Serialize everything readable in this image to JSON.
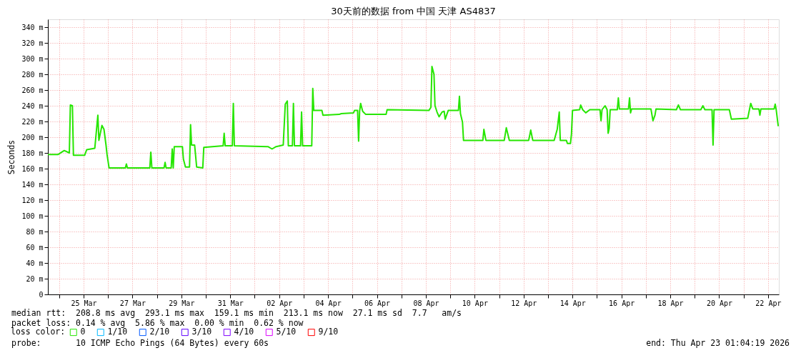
{
  "chart_data": {
    "type": "line",
    "title": "30天前的数据 from 中国 天津 AS4837",
    "ylabel": "Seconds",
    "legend_title": "loss color:",
    "legend": "bottom left",
    "grid": true,
    "xlim": [
      "2026-03-23T12:55",
      "2026-04-22T10:36"
    ],
    "xticks": [
      {
        "value": "2026-03-24",
        "label": null
      },
      {
        "value": "2026-03-25",
        "label": "25 Mar"
      },
      {
        "value": "2026-03-26",
        "label": null
      },
      {
        "value": "2026-03-27",
        "label": "27 Mar"
      },
      {
        "value": "2026-03-28",
        "label": null
      },
      {
        "value": "2026-03-29",
        "label": "29 Mar"
      },
      {
        "value": "2026-03-30",
        "label": null
      },
      {
        "value": "2026-03-31",
        "label": "31 Mar"
      },
      {
        "value": "2026-04-01",
        "label": null
      },
      {
        "value": "2026-04-02",
        "label": "02 Apr"
      },
      {
        "value": "2026-04-03",
        "label": null
      },
      {
        "value": "2026-04-04",
        "label": "04 Apr"
      },
      {
        "value": "2026-04-05",
        "label": null
      },
      {
        "value": "2026-04-06",
        "label": "06 Apr"
      },
      {
        "value": "2026-04-07",
        "label": null
      },
      {
        "value": "2026-04-08",
        "label": "08 Apr"
      },
      {
        "value": "2026-04-09",
        "label": null
      },
      {
        "value": "2026-04-10",
        "label": "10 Apr"
      },
      {
        "value": "2026-04-11",
        "label": null
      },
      {
        "value": "2026-04-12",
        "label": "12 Apr"
      },
      {
        "value": "2026-04-13",
        "label": null
      },
      {
        "value": "2026-04-14",
        "label": "14 Apr"
      },
      {
        "value": "2026-04-15",
        "label": null
      },
      {
        "value": "2026-04-16",
        "label": "16 Apr"
      },
      {
        "value": "2026-04-17",
        "label": null
      },
      {
        "value": "2026-04-18",
        "label": "18 Apr"
      },
      {
        "value": "2026-04-19",
        "label": null
      },
      {
        "value": "2026-04-20",
        "label": "20 Apr"
      },
      {
        "value": "2026-04-21",
        "label": null
      },
      {
        "value": "2026-04-22",
        "label": "22 Apr"
      }
    ],
    "ylim": [
      0,
      350
    ],
    "yticks": [
      0,
      {
        "value": 20,
        "label": "20 m"
      },
      {
        "value": 40,
        "label": "40 m"
      },
      {
        "value": 60,
        "label": "60 m"
      },
      {
        "value": 80,
        "label": "80 m"
      },
      {
        "value": 100,
        "label": "100 m"
      },
      {
        "value": 120,
        "label": "120 m"
      },
      {
        "value": 140,
        "label": "140 m"
      },
      {
        "value": 160,
        "label": "160 m"
      },
      {
        "value": 180,
        "label": "180 m"
      },
      {
        "value": 200,
        "label": "200 m"
      },
      {
        "value": 220,
        "label": "220 m"
      },
      {
        "value": 240,
        "label": "240 m"
      },
      {
        "value": 260,
        "label": "260 m"
      },
      {
        "value": 280,
        "label": "280 m"
      },
      {
        "value": 300,
        "label": "300 m"
      },
      {
        "value": 320,
        "label": "320 m"
      },
      {
        "value": 340,
        "label": "340 m"
      }
    ],
    "x": [
      "2026-03-23T12:55",
      "2026-03-23T23:00",
      "2026-03-24T05:00",
      "2026-03-24T10:00",
      "2026-03-24T11:00",
      "2026-03-24T13:00",
      "2026-03-24T14:00",
      "2026-03-25T01:00",
      "2026-03-25T03:00",
      "2026-03-25T11:00",
      "2026-03-25T14:00",
      "2026-03-25T15:00",
      "2026-03-25T18:00",
      "2026-03-25T20:00",
      "2026-03-25T22:00",
      "2026-03-25T23:00",
      "2026-03-26T01:00",
      "2026-03-26T17:00",
      "2026-03-26T18:00",
      "2026-03-26T19:00",
      "2026-03-27T17:00",
      "2026-03-27T18:00",
      "2026-03-27T19:00",
      "2026-03-28T07:00",
      "2026-03-28T08:00",
      "2026-03-28T09:00",
      "2026-03-28T14:00",
      "2026-03-28T15:00",
      "2026-03-28T16:00",
      "2026-03-28T17:00",
      "2026-03-29T01:00",
      "2026-03-29T02:00",
      "2026-03-29T04:00",
      "2026-03-29T08:00",
      "2026-03-29T09:00",
      "2026-03-29T10:00",
      "2026-03-29T13:00",
      "2026-03-29T15:00",
      "2026-03-29T21:00",
      "2026-03-29T22:00",
      "2026-03-30T17:00",
      "2026-03-30T18:00",
      "2026-03-30T19:00",
      "2026-03-31T02:00",
      "2026-03-31T03:00",
      "2026-03-31T04:00",
      "2026-04-01T13:00",
      "2026-04-01T17:00",
      "2026-04-01T21:00",
      "2026-04-02T04:00",
      "2026-04-02T06:00",
      "2026-04-02T08:00",
      "2026-04-02T09:00",
      "2026-04-02T13:00",
      "2026-04-02T14:00",
      "2026-04-02T15:00",
      "2026-04-02T21:00",
      "2026-04-02T22:00",
      "2026-04-02T23:00",
      "2026-04-03T08:00",
      "2026-04-03T09:00",
      "2026-04-03T10:00",
      "2026-04-03T18:00",
      "2026-04-03T19:00",
      "2026-04-04T11:00",
      "2026-04-04T13:00",
      "2026-04-05T01:00",
      "2026-04-05T02:00",
      "2026-04-05T05:00",
      "2026-04-05T06:00",
      "2026-04-05T07:00",
      "2026-04-05T08:00",
      "2026-04-05T10:00",
      "2026-04-05T13:00",
      "2026-04-06T09:00",
      "2026-04-06T10:00",
      "2026-04-08T03:00",
      "2026-04-08T05:00",
      "2026-04-08T06:00",
      "2026-04-08T08:00",
      "2026-04-08T09:00",
      "2026-04-08T11:00",
      "2026-04-08T13:00",
      "2026-04-08T16:00",
      "2026-04-08T18:00",
      "2026-04-08T19:00",
      "2026-04-08T22:00",
      "2026-04-09T08:00",
      "2026-04-09T09:00",
      "2026-04-09T10:00",
      "2026-04-09T12:00",
      "2026-04-09T13:00",
      "2026-04-10T08:00",
      "2026-04-10T09:00",
      "2026-04-10T11:00",
      "2026-04-11T05:00",
      "2026-04-11T07:00",
      "2026-04-11T10:00",
      "2026-04-12T05:00",
      "2026-04-12T07:00",
      "2026-04-12T09:00",
      "2026-04-13T06:00",
      "2026-04-13T09:00",
      "2026-04-13T11:00",
      "2026-04-13T12:00",
      "2026-04-13T18:00",
      "2026-04-13T19:00",
      "2026-04-13T22:00",
      "2026-04-13T23:00",
      "2026-04-14T00:00",
      "2026-04-14T07:00",
      "2026-04-14T08:00",
      "2026-04-14T10:00",
      "2026-04-14T13:00",
      "2026-04-14T17:00",
      "2026-04-15T03:00",
      "2026-04-15T04:00",
      "2026-04-15T05:00",
      "2026-04-15T08:00",
      "2026-04-15T10:00",
      "2026-04-15T11:00",
      "2026-04-15T12:00",
      "2026-04-15T13:00",
      "2026-04-15T20:00",
      "2026-04-15T21:00",
      "2026-04-15T22:00",
      "2026-04-16T07:00",
      "2026-04-16T08:00",
      "2026-04-16T09:00",
      "2026-04-16T10:00",
      "2026-04-17T05:00",
      "2026-04-17T07:00",
      "2026-04-17T09:00",
      "2026-04-17T10:00",
      "2026-04-18T06:00",
      "2026-04-18T08:00",
      "2026-04-18T10:00",
      "2026-04-19T06:00",
      "2026-04-19T08:00",
      "2026-04-19T10:00",
      "2026-04-19T17:00",
      "2026-04-19T18:00",
      "2026-04-19T19:00",
      "2026-04-20T10:00",
      "2026-04-20T12:00",
      "2026-04-21T04:00",
      "2026-04-21T07:00",
      "2026-04-21T09:00",
      "2026-04-21T15:00",
      "2026-04-21T16:00",
      "2026-04-21T17:00",
      "2026-04-22T06:00",
      "2026-04-22T07:00",
      "2026-04-22T08:00",
      "2026-04-22T10:00"
    ],
    "series": [
      {
        "name": "0",
        "color": "#26e600",
        "values": [
          178,
          178,
          183,
          180,
          241,
          240,
          177,
          177,
          184,
          186,
          228,
          196,
          215,
          210,
          190,
          178,
          161,
          161,
          166,
          161,
          161,
          181,
          161,
          161,
          168,
          161,
          161,
          185,
          161,
          188,
          188,
          172,
          162,
          162,
          216,
          190,
          190,
          162,
          161,
          187,
          189,
          205,
          189,
          189,
          243,
          189,
          188,
          185,
          188,
          190,
          242,
          246,
          189,
          189,
          243,
          189,
          189,
          232,
          189,
          189,
          262,
          234,
          234,
          228,
          229,
          230,
          231,
          234,
          234,
          195,
          233,
          243,
          233,
          229,
          229,
          235,
          234,
          238,
          290,
          280,
          240,
          232,
          226,
          232,
          233,
          223,
          234,
          234,
          252,
          230,
          219,
          196,
          196,
          210,
          196,
          196,
          212,
          196,
          196,
          209,
          196,
          196,
          210,
          232,
          196,
          196,
          192,
          192,
          204,
          234,
          235,
          241,
          235,
          231,
          235,
          235,
          221,
          235,
          240,
          235,
          205,
          211,
          235,
          235,
          250,
          236,
          236,
          250,
          231,
          236,
          236,
          221,
          228,
          236,
          235,
          241,
          235,
          235,
          240,
          235,
          235,
          190,
          235,
          235,
          223,
          224,
          243,
          236,
          236,
          228,
          236,
          236,
          242,
          235,
          214
        ]
      },
      {
        "name": "1/10",
        "color": "#00b8ff",
        "values": [
          null,
          null,
          null,
          null,
          null,
          null,
          null,
          null,
          null,
          null,
          null,
          null,
          null,
          null,
          null,
          null,
          null,
          null,
          null,
          null,
          null,
          null,
          null,
          null,
          null,
          null,
          null,
          null,
          null,
          null,
          null,
          null,
          null,
          null,
          null,
          null,
          null,
          null,
          null,
          null,
          null,
          null,
          null,
          null,
          null,
          null,
          null,
          null,
          null,
          null,
          null,
          null,
          null,
          null,
          null,
          null,
          null,
          null,
          null,
          null,
          null,
          null,
          null,
          null,
          null,
          null,
          null,
          null,
          null,
          null,
          null,
          null,
          null,
          null,
          null,
          null,
          null,
          null,
          null,
          null,
          null,
          null,
          null,
          null,
          null,
          null,
          null,
          null,
          null,
          null,
          null,
          null,
          null,
          null,
          null,
          null,
          null,
          null,
          null,
          null,
          null,
          null,
          null,
          null,
          null,
          null,
          null,
          null,
          null,
          null,
          null,
          null,
          null,
          null,
          null,
          null,
          null,
          null,
          null,
          null,
          null,
          null,
          null,
          null,
          null,
          null,
          null,
          null,
          null,
          null,
          null,
          null,
          null,
          null,
          null,
          null,
          null,
          null,
          null,
          null,
          null,
          null,
          null,
          null,
          null,
          null,
          null,
          null,
          null,
          null,
          null,
          null,
          null,
          null,
          null
        ]
      },
      {
        "name": "2/10",
        "color": "#0059ff",
        "values": [
          null,
          null,
          null,
          null,
          null,
          null,
          null,
          null,
          null,
          null,
          null,
          null,
          null,
          null,
          null,
          null,
          null,
          null,
          null,
          null,
          null,
          null,
          null,
          null,
          null,
          null,
          null,
          null,
          null,
          null,
          null,
          null,
          null,
          null,
          null,
          null,
          null,
          null,
          null,
          null,
          null,
          null,
          null,
          null,
          null,
          null,
          null,
          null,
          null,
          null,
          null,
          null,
          null,
          null,
          null,
          null,
          null,
          null,
          null,
          null,
          null,
          null,
          null,
          null,
          null,
          null,
          null,
          null,
          null,
          null,
          null,
          null,
          null,
          null,
          null,
          null,
          null,
          null,
          null,
          null,
          null,
          null,
          null,
          null,
          null,
          null,
          null,
          null,
          null,
          null,
          null,
          null,
          null,
          null,
          null,
          null,
          null,
          null,
          null,
          null,
          null,
          null,
          null,
          null,
          null,
          null,
          null,
          null,
          null,
          null,
          null,
          null,
          null,
          null,
          null,
          null,
          null,
          null,
          null,
          null,
          null,
          null,
          null,
          null,
          null,
          null,
          null,
          null,
          null,
          null,
          null,
          null,
          null,
          null,
          null,
          null,
          null,
          null,
          null,
          null,
          null,
          null,
          null,
          null,
          null,
          null,
          null,
          null,
          null,
          null,
          null,
          null,
          null,
          null,
          null
        ]
      },
      {
        "name": "3/10",
        "color": "#5e00ff",
        "values": [
          null,
          null,
          null,
          null,
          null,
          null,
          null,
          null,
          null,
          null,
          null,
          null,
          null,
          null,
          null,
          null,
          null,
          null,
          null,
          null,
          null,
          null,
          null,
          null,
          null,
          null,
          null,
          null,
          null,
          null,
          null,
          null,
          null,
          null,
          null,
          null,
          null,
          null,
          null,
          null,
          null,
          null,
          null,
          null,
          null,
          null,
          null,
          null,
          null,
          null,
          null,
          null,
          null,
          null,
          null,
          null,
          null,
          null,
          null,
          null,
          null,
          null,
          null,
          null,
          null,
          null,
          null,
          null,
          null,
          null,
          null,
          null,
          null,
          null,
          null,
          null,
          null,
          null,
          null,
          null,
          null,
          null,
          null,
          null,
          null,
          null,
          null,
          null,
          null,
          null,
          null,
          null,
          null,
          null,
          null,
          null,
          null,
          null,
          null,
          null,
          null,
          null,
          null,
          null,
          null,
          null,
          null,
          null,
          null,
          null,
          null,
          null,
          null,
          null,
          null,
          null,
          null,
          null,
          null,
          null,
          null,
          null,
          null,
          null,
          null,
          null,
          null,
          null,
          null,
          null,
          null,
          null,
          null,
          null,
          null,
          null,
          null,
          null,
          null,
          null,
          null,
          null,
          null,
          null,
          null,
          null,
          null,
          null,
          null,
          null,
          null,
          null,
          null,
          null,
          null
        ]
      },
      {
        "name": "4/10",
        "color": "#7e00ff",
        "values": [
          null,
          null,
          null,
          null,
          null,
          null,
          null,
          null,
          null,
          null,
          null,
          null,
          null,
          null,
          null,
          null,
          null,
          null,
          null,
          null,
          null,
          null,
          null,
          null,
          null,
          null,
          null,
          null,
          null,
          null,
          null,
          null,
          null,
          null,
          null,
          null,
          null,
          null,
          null,
          null,
          null,
          null,
          null,
          null,
          null,
          null,
          null,
          null,
          null,
          null,
          null,
          null,
          null,
          null,
          null,
          null,
          null,
          null,
          null,
          null,
          null,
          null,
          null,
          null,
          null,
          null,
          null,
          null,
          null,
          null,
          null,
          null,
          null,
          null,
          null,
          null,
          null,
          null,
          null,
          null,
          null,
          null,
          null,
          null,
          null,
          null,
          null,
          null,
          null,
          null,
          null,
          null,
          null,
          null,
          null,
          null,
          null,
          null,
          null,
          null,
          null,
          null,
          null,
          null,
          null,
          null,
          null,
          null,
          null,
          null,
          null,
          null,
          null,
          null,
          null,
          null,
          null,
          null,
          null,
          null,
          null,
          null,
          null,
          null,
          null,
          null,
          null,
          null,
          null,
          null,
          null,
          null,
          null,
          null,
          null,
          null,
          null,
          null,
          null,
          null,
          null,
          null,
          null,
          null,
          null,
          null,
          null,
          null,
          null,
          null,
          null,
          null,
          null,
          null,
          null
        ]
      },
      {
        "name": "5/10",
        "color": "#dd00ff",
        "values": [
          null,
          null,
          null,
          null,
          null,
          null,
          null,
          null,
          null,
          null,
          null,
          null,
          null,
          null,
          null,
          null,
          null,
          null,
          null,
          null,
          null,
          null,
          null,
          null,
          null,
          null,
          null,
          null,
          null,
          null,
          null,
          null,
          null,
          null,
          null,
          null,
          null,
          null,
          null,
          null,
          null,
          null,
          null,
          null,
          null,
          null,
          null,
          null,
          null,
          null,
          null,
          null,
          null,
          null,
          null,
          null,
          null,
          null,
          null,
          null,
          null,
          null,
          null,
          null,
          null,
          null,
          null,
          null,
          null,
          null,
          null,
          null,
          null,
          null,
          null,
          null,
          null,
          null,
          null,
          null,
          null,
          null,
          null,
          null,
          null,
          null,
          null,
          null,
          null,
          null,
          null,
          null,
          null,
          null,
          null,
          null,
          null,
          null,
          null,
          null,
          null,
          null,
          null,
          null,
          null,
          null,
          null,
          null,
          null,
          null,
          null,
          null,
          null,
          null,
          null,
          null,
          null,
          null,
          null,
          null,
          null,
          null,
          null,
          null,
          null,
          null,
          null,
          null,
          null,
          null,
          null,
          null,
          null,
          null,
          null,
          null,
          null,
          null,
          null,
          null,
          null,
          null,
          null,
          null,
          null,
          null,
          null,
          null,
          null,
          null,
          null,
          null,
          null,
          null,
          null
        ]
      },
      {
        "name": "9/10",
        "color": "#ff0000",
        "values": [
          null,
          null,
          null,
          null,
          null,
          null,
          null,
          null,
          null,
          null,
          null,
          null,
          null,
          null,
          null,
          null,
          null,
          null,
          null,
          null,
          null,
          null,
          null,
          null,
          null,
          null,
          null,
          null,
          null,
          null,
          null,
          null,
          null,
          null,
          null,
          null,
          null,
          null,
          null,
          null,
          null,
          null,
          null,
          null,
          null,
          null,
          null,
          null,
          null,
          null,
          null,
          null,
          null,
          null,
          null,
          null,
          null,
          null,
          null,
          null,
          null,
          null,
          null,
          null,
          null,
          null,
          null,
          null,
          null,
          null,
          null,
          null,
          null,
          null,
          null,
          null,
          null,
          null,
          null,
          null,
          null,
          null,
          null,
          null,
          null,
          null,
          null,
          null,
          null,
          null,
          null,
          null,
          null,
          null,
          null,
          null,
          null,
          null,
          null,
          null,
          null,
          null,
          null,
          null,
          null,
          null,
          null,
          null,
          null,
          null,
          null,
          null,
          null,
          null,
          null,
          null,
          null,
          null,
          null,
          null,
          null,
          null,
          null,
          null,
          null,
          null,
          null,
          null,
          null,
          null,
          null,
          null,
          null,
          null,
          null,
          null,
          null,
          null,
          null,
          null,
          null,
          null,
          null,
          null,
          null,
          null,
          null,
          null,
          null,
          null,
          null,
          null,
          null,
          null,
          null
        ]
      }
    ],
    "annotations": [
      "median rtt:  208.8 ms avg  293.1 ms max  159.1 ms min  213.1 ms now  27.1 ms sd  7.7   am/s",
      "packet loss: 0.14 % avg  5.86 % max  0.00 % min  0.62 % now",
      "probe:       10 ICMP Echo Pings (64 Bytes) every 60s",
      "end: Thu Apr 23 01:04:19 2026"
    ]
  }
}
